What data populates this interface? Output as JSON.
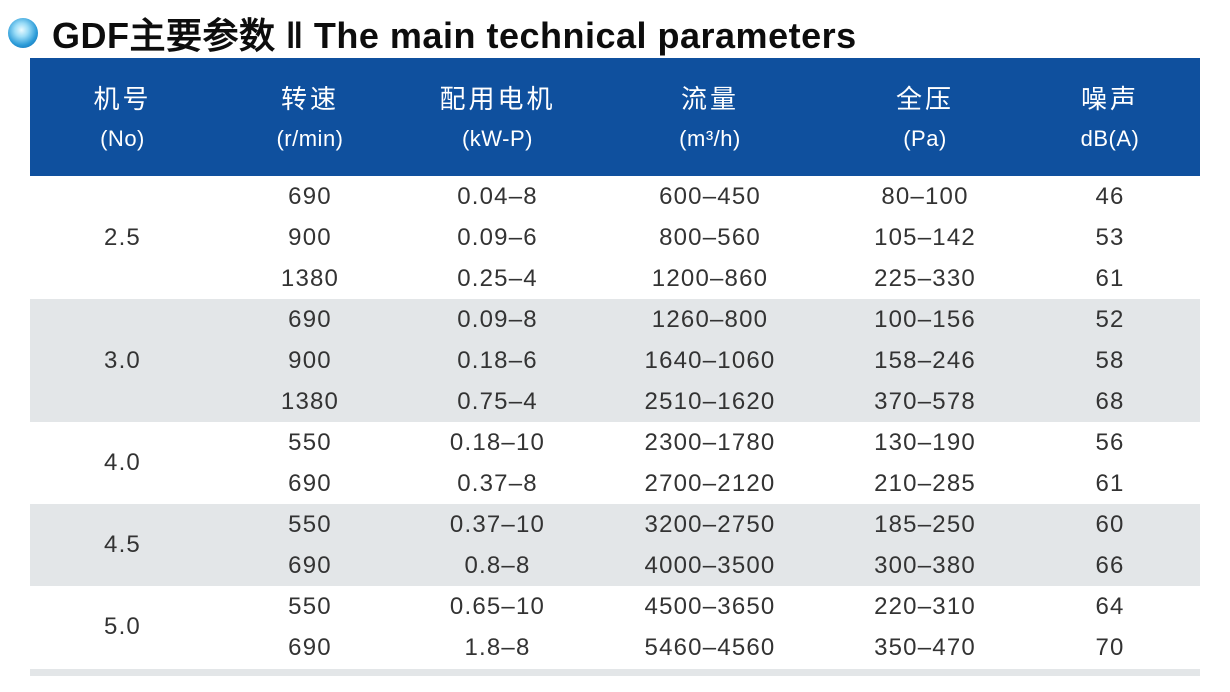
{
  "title": {
    "text_zh": "GDF主要参数",
    "separator": "‖",
    "text_en": "The main technical parameters"
  },
  "colors": {
    "header_bg": "#0F509E",
    "alt_row_bg": "#E3E6E8",
    "bullet_outer": "#0A5EA6",
    "bullet_inner": "#9ADCF7",
    "title_text": "#0D0D0D",
    "body_text": "#333333"
  },
  "table": {
    "columns": [
      {
        "name_zh": "机号",
        "unit": "(No)"
      },
      {
        "name_zh": "转速",
        "unit": "(r/min)"
      },
      {
        "name_zh": "配用电机",
        "unit": "(kW-P)"
      },
      {
        "name_zh": "流量",
        "unit": "(m³/h)"
      },
      {
        "name_zh": "全压",
        "unit": "(Pa)"
      },
      {
        "name_zh": "噪声",
        "unit": "dB(A)"
      }
    ],
    "groups": [
      {
        "no": "2.5",
        "rows": [
          [
            "690",
            "0.04–8",
            "600–450",
            "80–100",
            "46"
          ],
          [
            "900",
            "0.09–6",
            "800–560",
            "105–142",
            "53"
          ],
          [
            "1380",
            "0.25–4",
            "1200–860",
            "225–330",
            "61"
          ]
        ]
      },
      {
        "no": "3.0",
        "rows": [
          [
            "690",
            "0.09–8",
            "1260–800",
            "100–156",
            "52"
          ],
          [
            "900",
            "0.18–6",
            "1640–1060",
            "158–246",
            "58"
          ],
          [
            "1380",
            "0.75–4",
            "2510–1620",
            "370–578",
            "68"
          ]
        ]
      },
      {
        "no": "4.0",
        "rows": [
          [
            "550",
            "0.18–10",
            "2300–1780",
            "130–190",
            "56"
          ],
          [
            "690",
            "0.37–8",
            "2700–2120",
            "210–285",
            "61"
          ]
        ]
      },
      {
        "no": "4.5",
        "rows": [
          [
            "550",
            "0.37–10",
            "3200–2750",
            "185–250",
            "60"
          ],
          [
            "690",
            "0.8–8",
            "4000–3500",
            "300–380",
            "66"
          ]
        ]
      },
      {
        "no": "5.0",
        "rows": [
          [
            "550",
            "0.65–10",
            "4500–3650",
            "220–310",
            "64"
          ],
          [
            "690",
            "1.8–8",
            "5460–4560",
            "350–470",
            "70"
          ]
        ]
      }
    ]
  }
}
